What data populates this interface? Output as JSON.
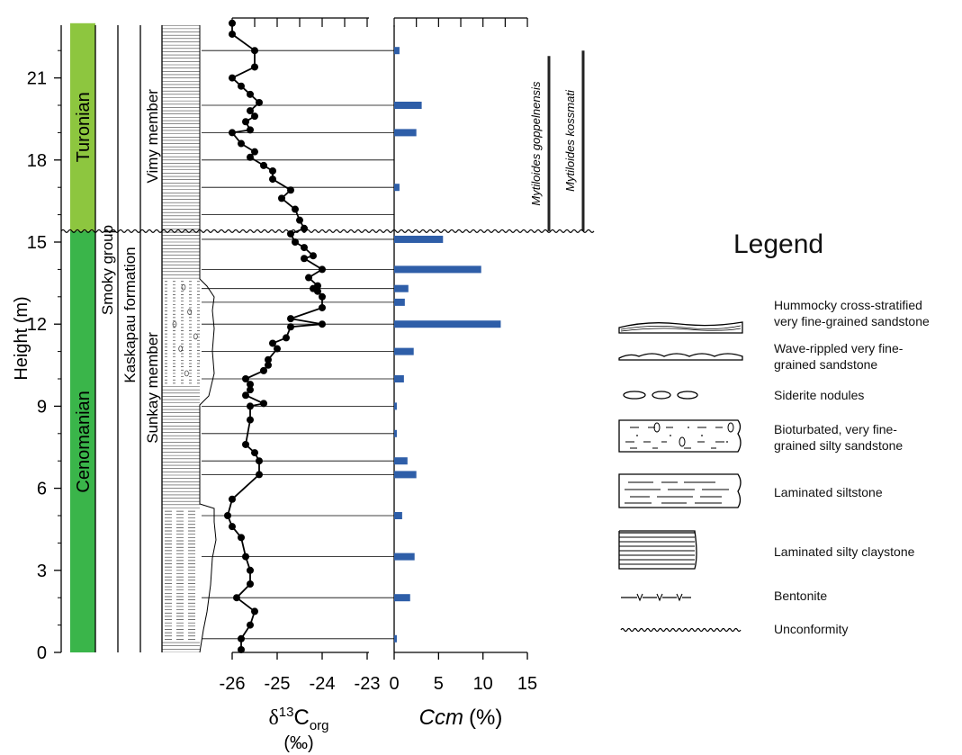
{
  "chart_data": {
    "type": "stratigraphic column with line and bar charts",
    "y_axis": {
      "label": "Height (m)",
      "range": [
        0,
        23
      ],
      "ticks": [
        0,
        3,
        6,
        9,
        12,
        15,
        18,
        21
      ]
    },
    "stages": [
      {
        "name": "Cenomanian",
        "from": 0,
        "to": 15.4,
        "color": "#3ab54a"
      },
      {
        "name": "Turonian",
        "from": 15.4,
        "to": 23,
        "color": "#8dc63f"
      }
    ],
    "group": "Smoky group",
    "formation": "Kaskapau formation",
    "members": [
      {
        "name": "Sunkay member",
        "from": 0,
        "to": 15.4
      },
      {
        "name": "Vimy member",
        "from": 15.4,
        "to": 23
      }
    ],
    "d13c": {
      "xlabel_base": "δ",
      "xlabel_sup": "13",
      "xlabel_main": "C",
      "xlabel_sub": "org",
      "xunit": "(‰)",
      "xrange": [
        -26,
        -23
      ],
      "ticks": [
        -26,
        -25,
        -24,
        -23
      ],
      "points": [
        [
          -25.8,
          0.1
        ],
        [
          -25.8,
          0.5
        ],
        [
          -25.6,
          1.0
        ],
        [
          -25.5,
          1.5
        ],
        [
          -25.9,
          2.0
        ],
        [
          -25.6,
          2.5
        ],
        [
          -25.6,
          3.0
        ],
        [
          -25.7,
          3.5
        ],
        [
          -25.8,
          4.2
        ],
        [
          -26.0,
          4.6
        ],
        [
          -26.1,
          5.0
        ],
        [
          -26.0,
          5.6
        ],
        [
          -25.4,
          6.5
        ],
        [
          -25.4,
          7.0
        ],
        [
          -25.5,
          7.3
        ],
        [
          -25.7,
          7.6
        ],
        [
          -25.6,
          8.5
        ],
        [
          -25.6,
          9.0
        ],
        [
          -25.3,
          9.1
        ],
        [
          -25.7,
          9.4
        ],
        [
          -25.6,
          9.6
        ],
        [
          -25.6,
          9.8
        ],
        [
          -25.7,
          10.0
        ],
        [
          -25.3,
          10.3
        ],
        [
          -25.2,
          10.5
        ],
        [
          -25.2,
          10.7
        ],
        [
          -25.0,
          11.1
        ],
        [
          -25.1,
          11.3
        ],
        [
          -24.8,
          11.5
        ],
        [
          -24.7,
          11.9
        ],
        [
          -24.0,
          12.0
        ],
        [
          -24.7,
          12.2
        ],
        [
          -24.0,
          12.6
        ],
        [
          -24.0,
          13.0
        ],
        [
          -24.1,
          13.2
        ],
        [
          -24.2,
          13.3
        ],
        [
          -24.1,
          13.4
        ],
        [
          -24.3,
          13.7
        ],
        [
          -24.0,
          14.0
        ],
        [
          -24.4,
          14.4
        ],
        [
          -24.2,
          14.5
        ],
        [
          -24.4,
          14.8
        ],
        [
          -24.6,
          15.0
        ],
        [
          -24.7,
          15.3
        ],
        [
          -24.4,
          15.5
        ],
        [
          -24.5,
          15.8
        ],
        [
          -24.6,
          16.2
        ],
        [
          -24.9,
          16.6
        ],
        [
          -24.7,
          16.9
        ],
        [
          -25.1,
          17.3
        ],
        [
          -25.1,
          17.6
        ],
        [
          -25.3,
          17.8
        ],
        [
          -25.6,
          18.1
        ],
        [
          -25.5,
          18.3
        ],
        [
          -25.8,
          18.6
        ],
        [
          -26.0,
          19.0
        ],
        [
          -25.6,
          19.1
        ],
        [
          -25.7,
          19.4
        ],
        [
          -25.5,
          19.6
        ],
        [
          -25.6,
          19.8
        ],
        [
          -25.4,
          20.1
        ],
        [
          -25.6,
          20.4
        ],
        [
          -25.8,
          20.7
        ],
        [
          -26.0,
          21.0
        ],
        [
          -25.5,
          21.4
        ],
        [
          -25.5,
          22.0
        ],
        [
          -26.0,
          22.6
        ],
        [
          -26.0,
          23.0
        ]
      ]
    },
    "ccm": {
      "xlabel": "Ccm",
      "xunit": "(%)",
      "xrange": [
        0,
        15
      ],
      "ticks": [
        0,
        5,
        10,
        15
      ],
      "color": "#2e5ea8",
      "bars": [
        {
          "height": 0.5,
          "value": 0.3
        },
        {
          "height": 2.0,
          "value": 1.8
        },
        {
          "height": 3.5,
          "value": 2.3
        },
        {
          "height": 5.0,
          "value": 0.9
        },
        {
          "height": 6.5,
          "value": 2.5
        },
        {
          "height": 7.0,
          "value": 1.5
        },
        {
          "height": 8.0,
          "value": 0.3
        },
        {
          "height": 9.0,
          "value": 0.3
        },
        {
          "height": 10.0,
          "value": 1.1
        },
        {
          "height": 11.0,
          "value": 2.2
        },
        {
          "height": 12.0,
          "value": 12.0
        },
        {
          "height": 12.8,
          "value": 1.2
        },
        {
          "height": 13.3,
          "value": 1.6
        },
        {
          "height": 14.0,
          "value": 9.8
        },
        {
          "height": 15.1,
          "value": 5.5
        },
        {
          "height": 17.0,
          "value": 0.6
        },
        {
          "height": 19.0,
          "value": 2.5
        },
        {
          "height": 20.0,
          "value": 3.1
        },
        {
          "height": 22.0,
          "value": 0.6
        }
      ]
    },
    "tie_lines": [
      0.5,
      2.0,
      3.5,
      5.0,
      6.5,
      7.0,
      8.0,
      9.0,
      10.0,
      11.0,
      12.0,
      12.8,
      13.3,
      14.0,
      15.1,
      16.0,
      17.0,
      18.0,
      19.0,
      20.0,
      22.0
    ],
    "unconformity_height": 15.4,
    "biozones": [
      {
        "name": "Mytiloides goppelnensis",
        "from": 15.4,
        "to": 21.8
      },
      {
        "name": "Mytiloides kossmati",
        "from": 15.4,
        "to": 22.0
      }
    ]
  },
  "legend": {
    "title": "Legend",
    "items": [
      {
        "icon": "hummocky-sandstone-icon",
        "label": "Hummocky cross-stratified\nvery fine-grained sandstone"
      },
      {
        "icon": "wave-rippled-sandstone-icon",
        "label": "Wave-rippled very fine-\ngrained sandstone"
      },
      {
        "icon": "siderite-nodules-icon",
        "label": "Siderite nodules"
      },
      {
        "icon": "bioturbated-sandstone-icon",
        "label": "Bioturbated, very fine-\ngrained silty sandstone"
      },
      {
        "icon": "laminated-siltstone-icon",
        "label": "Laminated siltstone"
      },
      {
        "icon": "laminated-claystone-icon",
        "label": "Laminated silty claystone"
      },
      {
        "icon": "bentonite-icon",
        "label": "Bentonite"
      },
      {
        "icon": "unconformity-icon",
        "label": "Unconformity"
      }
    ]
  }
}
